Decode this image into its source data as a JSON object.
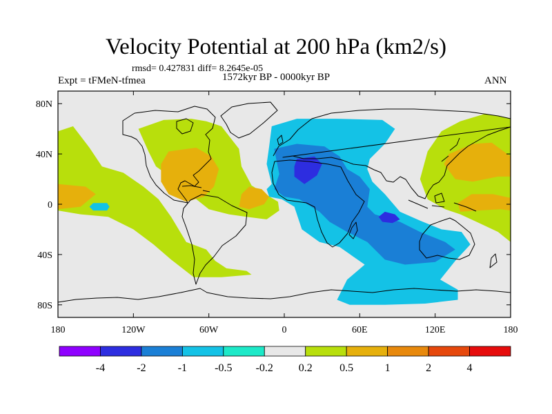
{
  "chart_data": {
    "type": "heatmap",
    "title": "Velocity Potential at 200 hPa (km2/s)",
    "subtitle_stats": "rmsd= 0.427831 diff= 8.2645e-05",
    "left_label": "Expt = tFMeN-tfmea",
    "center_label": "1572kyr BP - 0000kyr BP",
    "right_label": "ANN",
    "projection": "cylindrical equidistant",
    "xlim": [
      -180,
      180
    ],
    "ylim": [
      -90,
      90
    ],
    "x_ticks": [
      {
        "value": -180,
        "label": "180"
      },
      {
        "value": -120,
        "label": "120W"
      },
      {
        "value": -60,
        "label": "60W"
      },
      {
        "value": 0,
        "label": "0"
      },
      {
        "value": 60,
        "label": "60E"
      },
      {
        "value": 120,
        "label": "120E"
      },
      {
        "value": 180,
        "label": "180"
      }
    ],
    "y_ticks": [
      {
        "value": 80,
        "label": "80N"
      },
      {
        "value": 40,
        "label": "40N"
      },
      {
        "value": 0,
        "label": "0"
      },
      {
        "value": -40,
        "label": "40S"
      },
      {
        "value": -80,
        "label": "80S"
      }
    ],
    "colorbar": {
      "levels": [
        "-4",
        "-2",
        "-1",
        "-0.5",
        "-0.2",
        "0.2",
        "0.5",
        "1",
        "2",
        "4"
      ],
      "colors": [
        "#8f00ff",
        "#2d2de0",
        "#1a7fd6",
        "#14c2e6",
        "#1de9c8",
        "#e8e8e8",
        "#b8df0c",
        "#e6b00c",
        "#e8890c",
        "#e6480c",
        "#e60c0c"
      ]
    },
    "regions": [
      {
        "name": "east-pacific-positive-tongue",
        "class": "0.2 to 0.5",
        "polygon": [
          [
            -180,
            58
          ],
          [
            -168,
            62
          ],
          [
            -155,
            45
          ],
          [
            -145,
            30
          ],
          [
            -128,
            25
          ],
          [
            -112,
            14
          ],
          [
            -100,
            4
          ],
          [
            -90,
            -10
          ],
          [
            -78,
            -30
          ],
          [
            -62,
            -36
          ],
          [
            -55,
            -45
          ],
          [
            -46,
            -51
          ],
          [
            -30,
            -53
          ],
          [
            -26,
            -56
          ],
          [
            -50,
            -58
          ],
          [
            -72,
            -58
          ],
          [
            -90,
            -44
          ],
          [
            -104,
            -32
          ],
          [
            -120,
            -20
          ],
          [
            -140,
            -10
          ],
          [
            -162,
            -8
          ],
          [
            -180,
            -5
          ]
        ]
      },
      {
        "name": "america-atlantic-positive",
        "class": "0.2 to 0.5",
        "polygon": [
          [
            -116,
            60
          ],
          [
            -96,
            67
          ],
          [
            -74,
            68
          ],
          [
            -62,
            66
          ],
          [
            -50,
            62
          ],
          [
            -36,
            44
          ],
          [
            -34,
            30
          ],
          [
            -26,
            15
          ],
          [
            -15,
            8
          ],
          [
            -5,
            2
          ],
          [
            -4,
            -5
          ],
          [
            -14,
            -12
          ],
          [
            -30,
            -10
          ],
          [
            -44,
            -8
          ],
          [
            -60,
            -4
          ],
          [
            -75,
            8
          ],
          [
            -88,
            20
          ],
          [
            -102,
            30
          ],
          [
            -108,
            42
          ]
        ]
      },
      {
        "name": "west-pacific-positive",
        "class": "0.2 to 0.5",
        "polygon": [
          [
            180,
            68
          ],
          [
            160,
            72
          ],
          [
            140,
            66
          ],
          [
            125,
            58
          ],
          [
            114,
            42
          ],
          [
            108,
            20
          ],
          [
            114,
            4
          ],
          [
            128,
            -4
          ],
          [
            140,
            -8
          ],
          [
            155,
            -15
          ],
          [
            170,
            -22
          ],
          [
            180,
            -30
          ]
        ]
      },
      {
        "name": "east-pacific-moderate",
        "class": "0.5 to 1",
        "polygon": [
          [
            -180,
            16
          ],
          [
            -158,
            14
          ],
          [
            -150,
            8
          ],
          [
            -162,
            -2
          ],
          [
            -180,
            -4
          ]
        ]
      },
      {
        "name": "america-moderate",
        "class": "0.5 to 1",
        "polygon": [
          [
            -92,
            42
          ],
          [
            -70,
            45
          ],
          [
            -58,
            38
          ],
          [
            -52,
            28
          ],
          [
            -56,
            14
          ],
          [
            -64,
            6
          ],
          [
            -78,
            2
          ],
          [
            -92,
            8
          ],
          [
            -98,
            18
          ],
          [
            -98,
            32
          ]
        ]
      },
      {
        "name": "atlantic-moderate",
        "class": "0.5 to 1",
        "polygon": [
          [
            -28,
            14
          ],
          [
            -18,
            12
          ],
          [
            -12,
            6
          ],
          [
            -16,
            0
          ],
          [
            -28,
            -4
          ],
          [
            -36,
            -2
          ],
          [
            -34,
            8
          ]
        ]
      },
      {
        "name": "west-pacific-moderate",
        "class": "0.5 to 1",
        "polygon": [
          [
            180,
            38
          ],
          [
            165,
            49
          ],
          [
            150,
            48
          ],
          [
            131,
            40
          ],
          [
            127,
            32
          ],
          [
            136,
            20
          ],
          [
            150,
            18
          ],
          [
            170,
            22
          ],
          [
            180,
            22
          ]
        ]
      },
      {
        "name": "maritime-moderate",
        "class": "0.5 to 1",
        "polygon": [
          [
            180,
            5
          ],
          [
            166,
            8
          ],
          [
            149,
            8
          ],
          [
            138,
            1
          ],
          [
            140,
            -6
          ],
          [
            154,
            -5
          ],
          [
            172,
            -4
          ],
          [
            180,
            -5
          ]
        ]
      },
      {
        "name": "african-indian-negative",
        "class": "-0.2 to -0.5",
        "polygon": [
          [
            -10,
            62
          ],
          [
            10,
            68
          ],
          [
            42,
            68
          ],
          [
            78,
            67
          ],
          [
            88,
            60
          ],
          [
            80,
            48
          ],
          [
            68,
            36
          ],
          [
            66,
            28
          ],
          [
            70,
            18
          ],
          [
            80,
            8
          ],
          [
            92,
            -6
          ],
          [
            108,
            -13
          ],
          [
            125,
            -20
          ],
          [
            141,
            -22
          ],
          [
            148,
            -32
          ],
          [
            136,
            -45
          ],
          [
            124,
            -60
          ],
          [
            138,
            -68
          ],
          [
            138,
            -76
          ],
          [
            112,
            -79
          ],
          [
            80,
            -80
          ],
          [
            52,
            -80
          ],
          [
            42,
            -76
          ],
          [
            50,
            -60
          ],
          [
            64,
            -48
          ],
          [
            44,
            -34
          ],
          [
            28,
            -30
          ],
          [
            14,
            -20
          ],
          [
            8,
            -2
          ],
          [
            -2,
            4
          ],
          [
            -12,
            6
          ],
          [
            -14,
            12
          ],
          [
            -10,
            16
          ],
          [
            -14,
            32
          ],
          [
            -12,
            46
          ]
        ]
      },
      {
        "name": "africa-core-negative",
        "class": "-0.5 to -1",
        "polygon": [
          [
            -8,
            44
          ],
          [
            10,
            48
          ],
          [
            32,
            46
          ],
          [
            44,
            38
          ],
          [
            50,
            28
          ],
          [
            60,
            22
          ],
          [
            68,
            12
          ],
          [
            66,
            -2
          ],
          [
            72,
            -8
          ],
          [
            92,
            -14
          ],
          [
            108,
            -22
          ],
          [
            128,
            -30
          ],
          [
            136,
            -36
          ],
          [
            120,
            -46
          ],
          [
            96,
            -48
          ],
          [
            80,
            -44
          ],
          [
            66,
            -30
          ],
          [
            50,
            -22
          ],
          [
            36,
            -14
          ],
          [
            28,
            -6
          ],
          [
            12,
            4
          ],
          [
            0,
            6
          ],
          [
            -8,
            12
          ],
          [
            -4,
            24
          ]
        ]
      },
      {
        "name": "africa-peak-negative",
        "class": "-1 to -2",
        "polygon": [
          [
            10,
            36
          ],
          [
            24,
            38
          ],
          [
            30,
            32
          ],
          [
            26,
            23
          ],
          [
            16,
            16
          ],
          [
            8,
            22
          ],
          [
            8,
            30
          ]
        ]
      },
      {
        "name": "indian-peak-negative",
        "class": "-1 to -2",
        "polygon": [
          [
            80,
            -6
          ],
          [
            88,
            -8
          ],
          [
            92,
            -12
          ],
          [
            86,
            -15
          ],
          [
            78,
            -14
          ],
          [
            75,
            -10
          ]
        ]
      },
      {
        "name": "pacific-small-negative",
        "class": "-0.2 to -0.5",
        "polygon": [
          [
            -152,
            1
          ],
          [
            -141,
            1
          ],
          [
            -139,
            -2
          ],
          [
            -141,
            -5
          ],
          [
            -152,
            -5
          ],
          [
            -155,
            -2
          ]
        ]
      }
    ]
  }
}
